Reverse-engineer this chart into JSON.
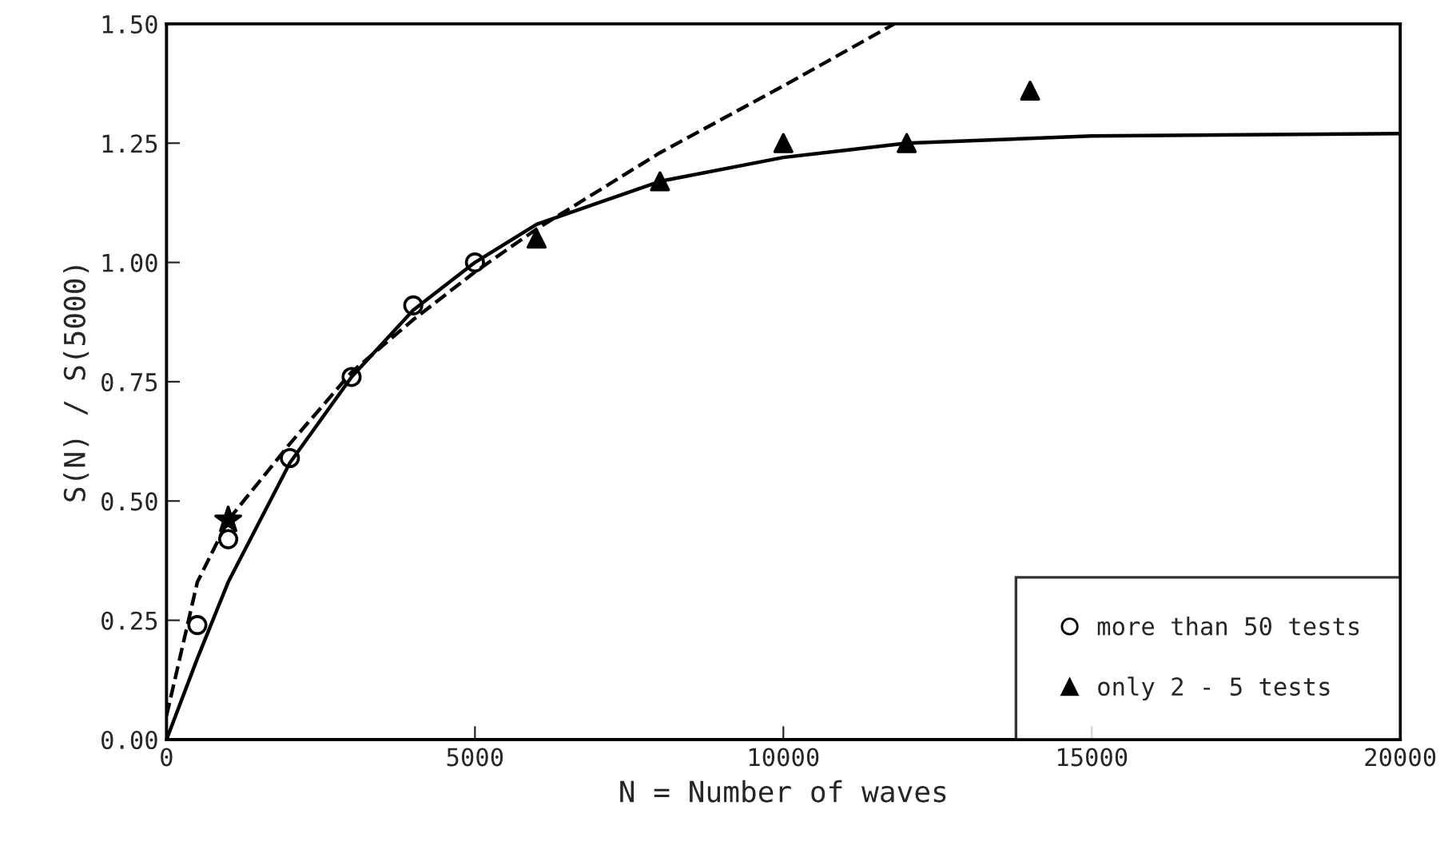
{
  "chart_data": {
    "type": "scatter",
    "xlabel": "N = Number of waves",
    "ylabel": "S(N) / S(5000)",
    "xlim": [
      0,
      20000
    ],
    "xticks": [
      0,
      5000,
      10000,
      15000,
      20000
    ],
    "ylim": [
      0,
      1.5
    ],
    "yticks": [
      {
        "value": 0,
        "label": "0.00"
      },
      {
        "value": 0.25,
        "label": "0.25"
      },
      {
        "value": 0.5,
        "label": "0.50"
      },
      {
        "value": 0.75,
        "label": "0.75"
      },
      {
        "value": 1.0,
        "label": "1.00"
      },
      {
        "value": 1.25,
        "label": "1.25"
      },
      {
        "value": 1.5,
        "label": "1.50"
      }
    ],
    "grid": false,
    "legend": "bottom right",
    "series": [
      {
        "name": "more than 50 tests",
        "marker": "circle",
        "color": "#000000",
        "x": [
          500,
          1000,
          2000,
          3000,
          4000,
          5000
        ],
        "values": [
          0.24,
          0.42,
          0.59,
          0.76,
          0.91,
          1.0
        ]
      },
      {
        "name": "only 2 - 5 tests",
        "marker": "triangle",
        "color": "#000000",
        "x": [
          6000,
          8000,
          10000,
          12000,
          14000
        ],
        "values": [
          1.05,
          1.17,
          1.25,
          1.25,
          1.36
        ]
      },
      {
        "marker": "star",
        "color": "#000000",
        "x": [
          1000
        ],
        "values": [
          0.46
        ]
      },
      {
        "type": "line",
        "line_style": "solid",
        "color": "#000000",
        "x": [
          0,
          500,
          1000,
          2000,
          3000,
          4000,
          5000,
          6000,
          8000,
          10000,
          12000,
          15000,
          20000
        ],
        "values": [
          0,
          0.17,
          0.33,
          0.58,
          0.76,
          0.9,
          1.0,
          1.08,
          1.17,
          1.22,
          1.25,
          1.265,
          1.27
        ]
      },
      {
        "type": "line",
        "line_style": "dashed",
        "color": "#000000",
        "x": [
          0,
          500,
          1000,
          2000,
          3000,
          4000,
          5000,
          6000,
          8000,
          10000,
          11800
        ],
        "values": [
          0.05,
          0.33,
          0.46,
          0.62,
          0.77,
          0.88,
          0.98,
          1.07,
          1.23,
          1.37,
          1.5
        ]
      }
    ]
  }
}
